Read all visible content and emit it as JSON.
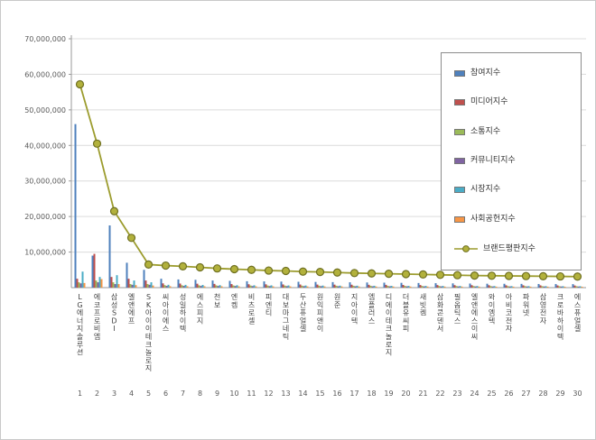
{
  "page": {
    "background": "#ffffff",
    "border_color": "#c9c9c9"
  },
  "chart_data": {
    "type": "bar",
    "title": "",
    "subtitle": "",
    "grid": "horizontal",
    "legend_position": "top-right",
    "y_axis": {
      "min": 0,
      "max": 70000000,
      "tick_interval": 10000000,
      "tick_labels": [
        "10,000,000",
        "20,000,000",
        "30,000,000",
        "40,000,000",
        "50,000,000",
        "60,000,000",
        "70,000,000"
      ]
    },
    "categories": [
      "LG에너지솔루션",
      "에코프로비엠",
      "삼성SDI",
      "엘앤에프",
      "SK아이이테크놀로지",
      "씨아이에스",
      "성일하이텍",
      "에스피지",
      "천보",
      "엔켐",
      "비츠로셀",
      "피엔티",
      "대보마그네틱",
      "두산퓨얼셀",
      "원익피앤이",
      "원준",
      "지아이텍",
      "엠플러스",
      "디에이테크놀로지",
      "더블유씨피",
      "새빗켐",
      "삼화콘덴서",
      "필옵틱스",
      "엘앤에스이씨",
      "와이엠텍",
      "아비코전자",
      "파워넷",
      "삼영전자",
      "크로바하이텍",
      "에스퓨얼셀"
    ],
    "rank_labels": [
      "1",
      "2",
      "3",
      "4",
      "5",
      "6",
      "7",
      "8",
      "9",
      "10",
      "11",
      "12",
      "13",
      "14",
      "15",
      "16",
      "17",
      "18",
      "19",
      "20",
      "21",
      "22",
      "23",
      "24",
      "25",
      "26",
      "27",
      "28",
      "29",
      "30"
    ],
    "series": [
      {
        "name": "참여지수",
        "type": "bar",
        "color": "#4F81BD",
        "values": [
          46000000,
          9000000,
          17500000,
          7000000,
          5000000,
          2500000,
          2300000,
          2200000,
          2000000,
          1900000,
          1800000,
          1750000,
          1700000,
          1650000,
          1600000,
          1550000,
          1500000,
          1450000,
          1400000,
          1350000,
          1300000,
          1250000,
          1200000,
          1150000,
          1100000,
          1080000,
          1050000,
          1020000,
          1000000,
          980000
        ]
      },
      {
        "name": "미디어지수",
        "type": "bar",
        "color": "#C0504D",
        "values": [
          2500000,
          9500000,
          3000000,
          2500000,
          2000000,
          1200000,
          1150000,
          1100000,
          1050000,
          1000000,
          950000,
          930000,
          900000,
          880000,
          860000,
          840000,
          820000,
          800000,
          780000,
          760000,
          740000,
          720000,
          700000,
          690000,
          680000,
          660000,
          650000,
          640000,
          620000,
          600000
        ]
      },
      {
        "name": "소통지수",
        "type": "bar",
        "color": "#9BBB59",
        "values": [
          1500000,
          2000000,
          1500000,
          1000000,
          1000000,
          700000,
          680000,
          660000,
          640000,
          620000,
          600000,
          590000,
          580000,
          560000,
          550000,
          540000,
          530000,
          520000,
          500000,
          490000,
          480000,
          470000,
          460000,
          450000,
          440000,
          430000,
          430000,
          420000,
          410000,
          400000
        ]
      },
      {
        "name": "커뮤니티지수",
        "type": "bar",
        "color": "#8064A2",
        "values": [
          1200000,
          1500000,
          1000000,
          800000,
          800000,
          500000,
          490000,
          480000,
          470000,
          460000,
          450000,
          440000,
          430000,
          420000,
          410000,
          400000,
          395000,
          390000,
          380000,
          370000,
          360000,
          355000,
          350000,
          345000,
          340000,
          335000,
          330000,
          325000,
          320000,
          315000
        ]
      },
      {
        "name": "시장지수",
        "type": "bar",
        "color": "#4BACC6",
        "values": [
          4500000,
          3000000,
          3500000,
          2000000,
          1500000,
          800000,
          780000,
          760000,
          700000,
          680000,
          660000,
          640000,
          620000,
          600000,
          580000,
          560000,
          540000,
          520000,
          500000,
          490000,
          480000,
          470000,
          460000,
          450000,
          440000,
          430000,
          420000,
          410000,
          400000,
          390000
        ]
      },
      {
        "name": "사회공헌지수",
        "type": "bar",
        "color": "#F79646",
        "values": [
          1300000,
          2400000,
          1000000,
          700000,
          600000,
          400000,
          395000,
          390000,
          380000,
          370000,
          360000,
          355000,
          350000,
          345000,
          340000,
          335000,
          330000,
          325000,
          320000,
          315000,
          310000,
          305000,
          300000,
          295000,
          290000,
          285000,
          280000,
          275000,
          270000,
          265000
        ]
      },
      {
        "name": "브랜드평판지수",
        "type": "line",
        "color": "#9C9C2E",
        "marker_fill": "#B2B13C",
        "marker_stroke": "#6F7021",
        "values": [
          57200000,
          40500000,
          21500000,
          14000000,
          6500000,
          6200000,
          6000000,
          5700000,
          5400000,
          5200000,
          5000000,
          4800000,
          4700000,
          4500000,
          4400000,
          4250000,
          4100000,
          4000000,
          3900000,
          3800000,
          3700000,
          3600000,
          3500000,
          3400000,
          3350000,
          3300000,
          3250000,
          3200000,
          3150000,
          3100000
        ]
      }
    ]
  }
}
